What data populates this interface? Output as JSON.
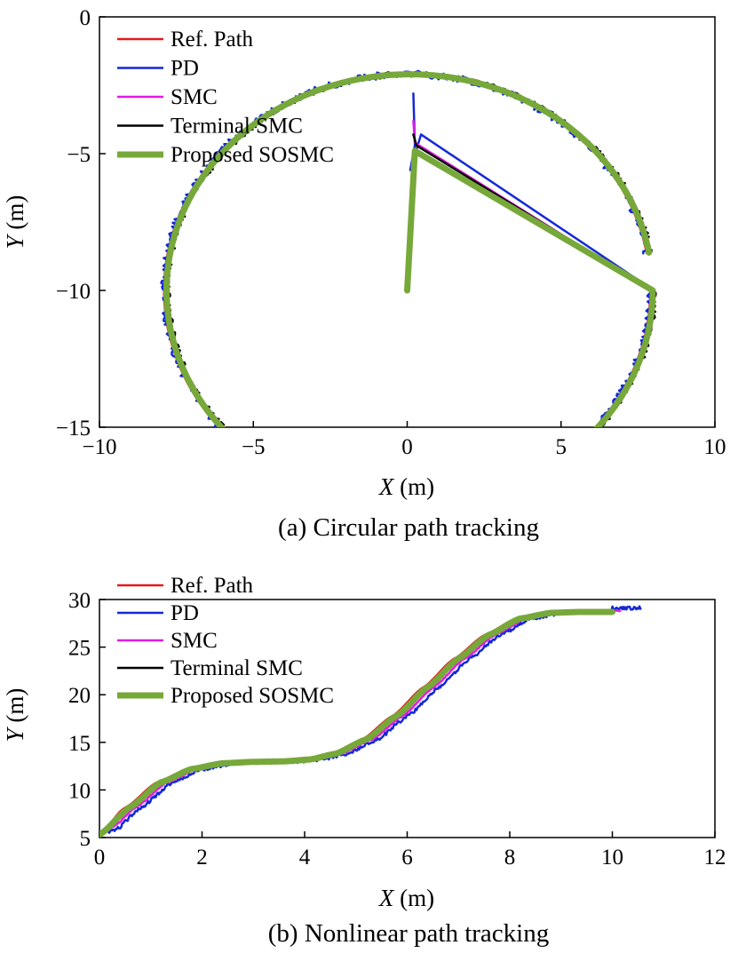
{
  "chart_data": [
    {
      "type": "line",
      "caption": "(a) Circular path tracking",
      "xlabel_var": "X",
      "xlabel_unit": " (m)",
      "ylabel_var": "Y",
      "ylabel_unit": " (m)",
      "xlim": [
        -10,
        10
      ],
      "ylim": [
        -15,
        0
      ],
      "xticks": [
        -10,
        -5,
        0,
        5,
        10
      ],
      "yticks": [
        -15,
        -10,
        -5,
        0
      ],
      "xtick_labels": [
        "−10",
        "−5",
        "0",
        "5",
        "10"
      ],
      "ytick_labels": [
        "−15",
        "−10",
        "−5",
        "0"
      ],
      "legend_position": "top-left",
      "circle": {
        "cx": 0,
        "cy": -10,
        "r": 7.9,
        "start_deg": 90,
        "end_deg": 440
      },
      "series": [
        {
          "name": "Ref. Path",
          "color": "#e31a1c",
          "width": 2.5,
          "noise": 0.0,
          "radial_offset": 0.0
        },
        {
          "name": "PD",
          "color": "#1428d8",
          "width": 2.5,
          "noise": 0.13,
          "radial_offset": -0.02,
          "initial_transient": [
            [
              0.2,
              -2.8
            ],
            [
              0.25,
              -4.7
            ],
            [
              0.1,
              -5.6
            ],
            [
              0.45,
              -4.3
            ]
          ]
        },
        {
          "name": "SMC",
          "color": "#e41ae4",
          "width": 2.5,
          "noise": 0.06,
          "radial_offset": -0.08,
          "initial_transient": [
            [
              0.2,
              -3.8
            ],
            [
              0.25,
              -4.6
            ]
          ]
        },
        {
          "name": "Terminal SMC",
          "color": "#000000",
          "width": 2.5,
          "noise": 0.09,
          "radial_offset": -0.12,
          "initial_transient": [
            [
              0.2,
              -4.3
            ],
            [
              0.3,
              -4.7
            ]
          ]
        },
        {
          "name": "Proposed SOSMC",
          "color": "#77a83a",
          "width": 7,
          "noise": 0.0,
          "radial_offset": -0.08,
          "start_segment": [
            [
              0,
              -10
            ],
            [
              0.25,
              -4.9
            ]
          ]
        }
      ]
    },
    {
      "type": "line",
      "caption": "(b) Nonlinear path tracking",
      "xlabel_var": "X",
      "xlabel_unit": " (m)",
      "ylabel_var": "Y",
      "ylabel_unit": " (m)",
      "xlim": [
        0,
        12
      ],
      "ylim": [
        5,
        30
      ],
      "xticks": [
        0,
        2,
        4,
        6,
        8,
        10,
        12
      ],
      "yticks": [
        5,
        10,
        15,
        20,
        25,
        30
      ],
      "xtick_labels": [
        "0",
        "2",
        "4",
        "6",
        "8",
        "10",
        "12"
      ],
      "ytick_labels": [
        "5",
        "10",
        "15",
        "20",
        "25",
        "30"
      ],
      "legend_position": "top-left",
      "series": [
        {
          "name": "Ref. Path",
          "color": "#e31a1c",
          "width": 2.5,
          "x_shift": -0.08,
          "x_end": 10.0,
          "noise": 0.0,
          "points": [
            [
              0,
              5.3
            ],
            [
              0.6,
              8.2
            ],
            [
              1.2,
              10.8
            ],
            [
              1.8,
              12.2
            ],
            [
              2.4,
              12.8
            ],
            [
              3.0,
              12.95
            ],
            [
              3.6,
              13.0
            ],
            [
              4.1,
              13.2
            ],
            [
              4.6,
              13.8
            ],
            [
              5.2,
              15.3
            ],
            [
              5.8,
              17.8
            ],
            [
              6.4,
              20.8
            ],
            [
              7.0,
              23.8
            ],
            [
              7.6,
              26.3
            ],
            [
              8.2,
              28.0
            ],
            [
              8.8,
              28.6
            ],
            [
              9.4,
              28.7
            ],
            [
              10.0,
              28.7
            ]
          ]
        },
        {
          "name": "PD",
          "color": "#1428d8",
          "width": 2.5,
          "x_shift": 0.22,
          "x_end": 10.55,
          "noise": 0.18,
          "points": [
            [
              0,
              5.3
            ],
            [
              0.6,
              8.2
            ],
            [
              1.2,
              10.8
            ],
            [
              1.8,
              12.2
            ],
            [
              2.4,
              12.8
            ],
            [
              3.0,
              12.95
            ],
            [
              3.6,
              13.0
            ],
            [
              4.1,
              13.2
            ],
            [
              4.6,
              13.8
            ],
            [
              5.2,
              15.3
            ],
            [
              5.8,
              17.8
            ],
            [
              6.4,
              20.8
            ],
            [
              7.0,
              23.8
            ],
            [
              7.6,
              26.3
            ],
            [
              8.2,
              28.0
            ],
            [
              8.8,
              28.6
            ],
            [
              9.4,
              28.7
            ],
            [
              10.0,
              28.7
            ]
          ]
        },
        {
          "name": "SMC",
          "color": "#e41ae4",
          "width": 2.5,
          "x_shift": 0.12,
          "x_end": 10.15,
          "noise": 0.05,
          "points": [
            [
              0,
              5.3
            ],
            [
              0.6,
              8.2
            ],
            [
              1.2,
              10.8
            ],
            [
              1.8,
              12.2
            ],
            [
              2.4,
              12.8
            ],
            [
              3.0,
              12.95
            ],
            [
              3.6,
              13.0
            ],
            [
              4.1,
              13.2
            ],
            [
              4.6,
              13.8
            ],
            [
              5.2,
              15.3
            ],
            [
              5.8,
              17.8
            ],
            [
              6.4,
              20.8
            ],
            [
              7.0,
              23.8
            ],
            [
              7.6,
              26.3
            ],
            [
              8.2,
              28.0
            ],
            [
              8.8,
              28.6
            ],
            [
              9.4,
              28.7
            ],
            [
              10.0,
              28.7
            ]
          ]
        },
        {
          "name": "Terminal SMC",
          "color": "#000000",
          "width": 2.5,
          "x_shift": -0.02,
          "x_end": 10.0,
          "noise": 0.09,
          "points": [
            [
              0,
              5.3
            ],
            [
              0.6,
              8.2
            ],
            [
              1.2,
              10.8
            ],
            [
              1.8,
              12.2
            ],
            [
              2.4,
              12.8
            ],
            [
              3.0,
              12.95
            ],
            [
              3.6,
              13.0
            ],
            [
              4.1,
              13.2
            ],
            [
              4.6,
              13.8
            ],
            [
              5.2,
              15.3
            ],
            [
              5.8,
              17.8
            ],
            [
              6.4,
              20.8
            ],
            [
              7.0,
              23.8
            ],
            [
              7.6,
              26.3
            ],
            [
              8.2,
              28.0
            ],
            [
              8.8,
              28.6
            ],
            [
              9.4,
              28.7
            ],
            [
              10.0,
              28.7
            ]
          ]
        },
        {
          "name": "Proposed SOSMC",
          "color": "#77a83a",
          "width": 7,
          "x_shift": 0.0,
          "x_end": 10.0,
          "noise": 0.0,
          "points": [
            [
              0,
              5.3
            ],
            [
              0.6,
              8.2
            ],
            [
              1.2,
              10.8
            ],
            [
              1.8,
              12.2
            ],
            [
              2.4,
              12.8
            ],
            [
              3.0,
              12.95
            ],
            [
              3.6,
              13.0
            ],
            [
              4.1,
              13.2
            ],
            [
              4.6,
              13.8
            ],
            [
              5.2,
              15.3
            ],
            [
              5.8,
              17.8
            ],
            [
              6.4,
              20.8
            ],
            [
              7.0,
              23.8
            ],
            [
              7.6,
              26.3
            ],
            [
              8.2,
              28.0
            ],
            [
              8.8,
              28.6
            ],
            [
              9.4,
              28.7
            ],
            [
              10.0,
              28.7
            ]
          ]
        }
      ]
    }
  ]
}
